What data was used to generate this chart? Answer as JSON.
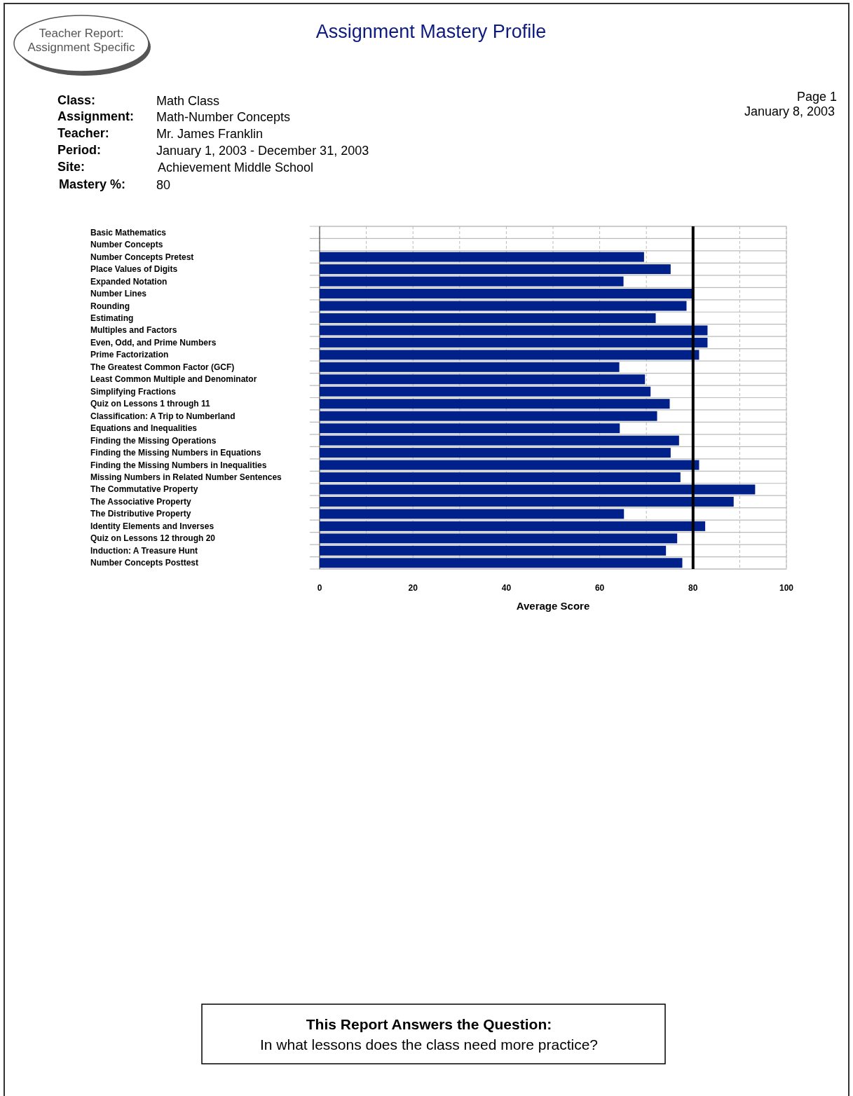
{
  "chart_data": {
    "type": "bar",
    "orientation": "horizontal",
    "title": "Assignment Mastery Profile",
    "xlabel": "Average Score",
    "categories": [
      "Basic Mathematics",
      "Number Concepts",
      "Number Concepts Pretest",
      "Place Values of Digits",
      "Expanded Notation",
      "Number Lines",
      "Rounding",
      "Estimating",
      "Multiples and Factors",
      "Even, Odd, and Prime Numbers",
      "Prime Factorization",
      "The Greatest Common Factor (GCF)",
      "Least Common Multiple and Denominator",
      "Simplifying Fractions",
      "Quiz on Lessons 1 through 11",
      "Classification: A Trip to Numberland",
      "Equations and Inequalities",
      "Finding the Missing Operations",
      "Finding the Missing Numbers in Equations",
      "Finding the Missing Numbers in Inequalities",
      "Missing Numbers in Related Number Sentences",
      "The Commutative Property",
      "The Associative Property",
      "The Distributive Property",
      "Identity Elements and Inverses",
      "Quiz on Lessons 12 through 20",
      "Induction: A Treasure Hunt",
      "Number Concepts Posttest"
    ],
    "values": [
      null,
      null,
      69.5,
      75.2,
      65.1,
      79.8,
      78.6,
      72.0,
      83.1,
      83.1,
      81.3,
      64.2,
      69.7,
      70.9,
      75.0,
      72.3,
      64.3,
      77.0,
      75.2,
      81.3,
      77.3,
      93.3,
      88.7,
      65.2,
      82.6,
      76.6,
      74.2,
      77.7
    ],
    "color": "#00218a",
    "xlim": [
      0,
      100
    ],
    "xticks": [
      0,
      {
        "value": 10,
        "label": null
      },
      20,
      {
        "value": 30,
        "label": null
      },
      40,
      {
        "value": 50,
        "label": null
      },
      60,
      {
        "value": 70,
        "label": null
      },
      80,
      {
        "value": 90,
        "label": null
      },
      100
    ],
    "grid": true,
    "ref_lines": [
      {
        "axis": "x",
        "value": 80,
        "label": null,
        "color": "#000000"
      }
    ],
    "annotations": [
      "Teacher Report:",
      "Assignment Specific",
      "Class:",
      "Math Class",
      "Assignment:",
      "Math-Number Concepts",
      "Teacher:",
      "Mr. James Franklin",
      "Period:",
      "January 1, 2003 - December 31, 2003",
      "Site:",
      "Achievement Middle School",
      "Mastery %:",
      "80",
      "Page 1",
      "January 8, 2003",
      "This Report Answers the Question:",
      "In what lessons does the class need more practice?"
    ]
  }
}
